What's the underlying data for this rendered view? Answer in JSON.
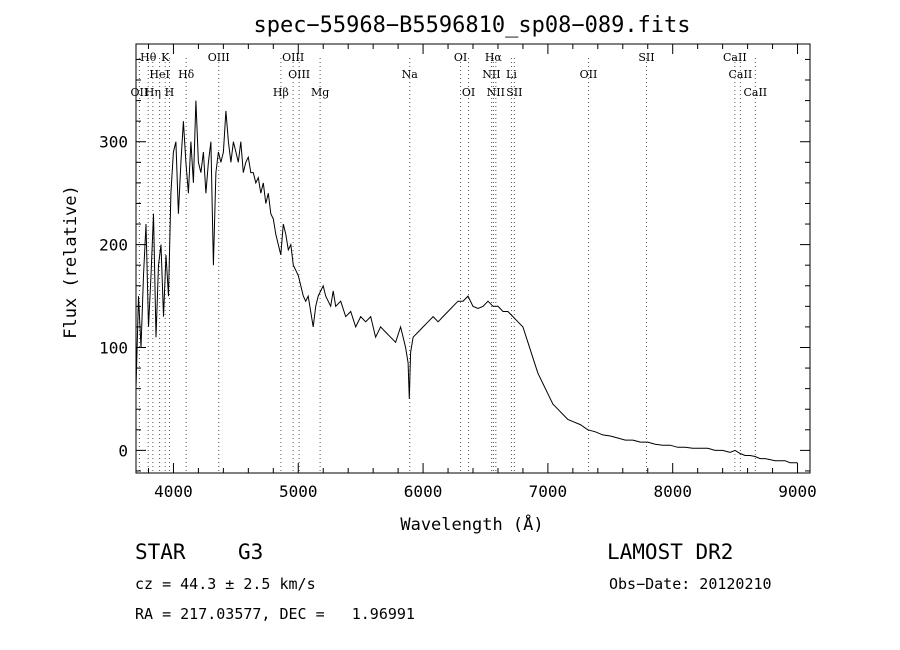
{
  "chart_data": {
    "type": "line",
    "title": "spec−55968−B5596810_sp08−089.fits",
    "xlabel": "Wavelength (Å)",
    "ylabel": "Flux (relative)",
    "xlim": [
      3700,
      9100
    ],
    "ylim": [
      -22,
      395
    ],
    "xticks": [
      4000,
      5000,
      6000,
      7000,
      8000,
      9000
    ],
    "yticks": [
      0,
      100,
      200,
      300
    ],
    "grid": false,
    "series": [
      {
        "x": [
          3700,
          3720,
          3740,
          3760,
          3780,
          3800,
          3820,
          3840,
          3860,
          3880,
          3900,
          3920,
          3940,
          3960,
          3980,
          4000,
          4020,
          4040,
          4060,
          4080,
          4100,
          4120,
          4140,
          4160,
          4180,
          4200,
          4220,
          4240,
          4260,
          4280,
          4300,
          4320,
          4340,
          4360,
          4380,
          4400,
          4420,
          4440,
          4460,
          4480,
          4500,
          4520,
          4540,
          4560,
          4580,
          4600,
          4620,
          4640,
          4660,
          4680,
          4700,
          4720,
          4740,
          4760,
          4780,
          4800,
          4820,
          4840,
          4860,
          4880,
          4900,
          4920,
          4940,
          4960,
          4980,
          5000,
          5020,
          5040,
          5060,
          5080,
          5100,
          5120,
          5140,
          5160,
          5180,
          5200,
          5220,
          5240,
          5260,
          5280,
          5300,
          5340,
          5380,
          5420,
          5460,
          5500,
          5540,
          5580,
          5620,
          5660,
          5700,
          5740,
          5780,
          5820,
          5860,
          5880,
          5890,
          5900,
          5920,
          5960,
          6000,
          6040,
          6080,
          6120,
          6160,
          6200,
          6240,
          6280,
          6320,
          6360,
          6400,
          6440,
          6480,
          6520,
          6560,
          6600,
          6640,
          6680,
          6720,
          6760,
          6800,
          6840,
          6880,
          6920,
          6960,
          7000,
          7040,
          7080,
          7120,
          7160,
          7200,
          7260,
          7320,
          7380,
          7440,
          7500,
          7560,
          7620,
          7680,
          7740,
          7800,
          7860,
          7920,
          7980,
          8040,
          8100,
          8160,
          8220,
          8280,
          8340,
          8400,
          8460,
          8500,
          8540,
          8580,
          8620,
          8660,
          8700,
          8740,
          8780,
          8820,
          8860,
          8900,
          8940,
          8980,
          9000
        ],
        "values": [
          60,
          150,
          100,
          170,
          220,
          120,
          170,
          230,
          110,
          180,
          200,
          130,
          190,
          150,
          250,
          290,
          300,
          230,
          280,
          320,
          280,
          250,
          300,
          260,
          340,
          280,
          270,
          290,
          250,
          280,
          300,
          180,
          270,
          290,
          280,
          290,
          330,
          300,
          280,
          300,
          290,
          280,
          300,
          270,
          280,
          285,
          270,
          270,
          260,
          265,
          250,
          260,
          240,
          250,
          230,
          225,
          210,
          200,
          190,
          220,
          210,
          195,
          200,
          180,
          175,
          170,
          160,
          150,
          145,
          150,
          135,
          120,
          140,
          150,
          155,
          160,
          150,
          145,
          140,
          155,
          140,
          145,
          130,
          135,
          120,
          130,
          125,
          130,
          110,
          120,
          115,
          110,
          105,
          120,
          100,
          85,
          50,
          95,
          110,
          115,
          120,
          125,
          130,
          125,
          130,
          135,
          140,
          145,
          145,
          150,
          140,
          138,
          140,
          145,
          140,
          140,
          135,
          135,
          130,
          125,
          120,
          105,
          90,
          75,
          65,
          55,
          45,
          40,
          35,
          30,
          28,
          25,
          20,
          18,
          15,
          14,
          12,
          10,
          10,
          8,
          8,
          6,
          5,
          5,
          3,
          3,
          2,
          2,
          2,
          0,
          0,
          -2,
          0,
          -3,
          -5,
          -5,
          -6,
          -8,
          -8,
          -9,
          -10,
          -10,
          -10,
          -12,
          -12,
          -12
        ]
      }
    ],
    "lines_top": [
      {
        "label": "Hθ",
        "x": 3798,
        "row": 1
      },
      {
        "label": "K",
        "x": 3934,
        "row": 1
      },
      {
        "label": "OIII",
        "x": 4363,
        "row": 1
      },
      {
        "label": "OIII",
        "x": 4959,
        "row": 1
      },
      {
        "label": "OI",
        "x": 6300,
        "row": 1
      },
      {
        "label": "Hα",
        "x": 6563,
        "row": 1
      },
      {
        "label": "SII",
        "x": 7790,
        "row": 1
      },
      {
        "label": "CaII",
        "x": 8498,
        "row": 1
      },
      {
        "label": "HeI",
        "x": 3889,
        "row": 2
      },
      {
        "label": "Hδ",
        "x": 4102,
        "row": 2
      },
      {
        "label": "OIII",
        "x": 5007,
        "row": 2
      },
      {
        "label": "Na",
        "x": 5893,
        "row": 2
      },
      {
        "label": "NII",
        "x": 6548,
        "row": 2
      },
      {
        "label": "Li",
        "x": 6708,
        "row": 2
      },
      {
        "label": "OII",
        "x": 7325,
        "row": 2
      },
      {
        "label": "CaII",
        "x": 8542,
        "row": 2
      },
      {
        "label": "OII",
        "x": 3727,
        "row": 3
      },
      {
        "label": "Hη",
        "x": 3835,
        "row": 3
      },
      {
        "label": "H",
        "x": 3968,
        "row": 3
      },
      {
        "label": "Hβ",
        "x": 4861,
        "row": 3
      },
      {
        "label": "Mg",
        "x": 5175,
        "row": 3
      },
      {
        "label": "OI",
        "x": 6364,
        "row": 3
      },
      {
        "label": "NII",
        "x": 6583,
        "row": 3
      },
      {
        "label": "SII",
        "x": 6731,
        "row": 3
      },
      {
        "label": "CaII",
        "x": 8662,
        "row": 3
      }
    ]
  },
  "info": {
    "class": "STAR",
    "subclass": "G3",
    "survey": "LAMOST DR2",
    "cz": "cz = 44.3 ± 2.5 km/s",
    "obs_date": "Obs−Date: 20120210",
    "coords": "RA = 217.03577, DEC =   1.96991"
  }
}
